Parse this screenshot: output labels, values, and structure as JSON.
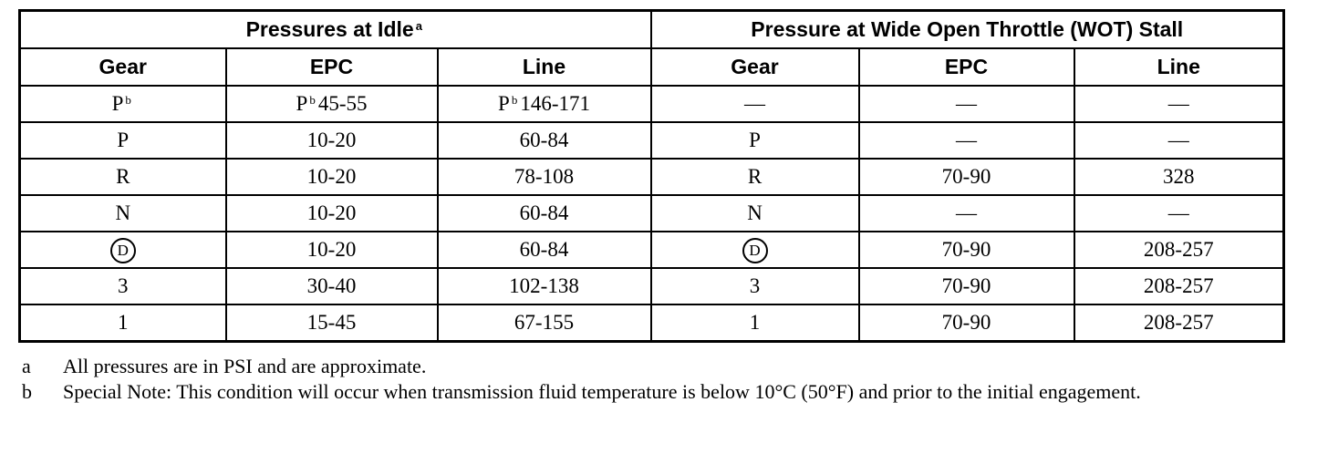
{
  "table": {
    "groups": [
      {
        "text": "Pressures at Idle",
        "sup": "a"
      },
      {
        "text": "Pressure at Wide Open Throttle (WOT) Stall"
      }
    ],
    "columns": [
      "Gear",
      "EPC",
      "Line",
      "Gear",
      "EPC",
      "Line"
    ],
    "rows": [
      [
        {
          "pre": "P",
          "sup": "b"
        },
        {
          "pre": "P",
          "sup": "b",
          "post": "45-55"
        },
        {
          "pre": "P",
          "sup": "b",
          "post": "146-171"
        },
        "—",
        "—",
        "—"
      ],
      [
        "P",
        "10-20",
        "60-84",
        "P",
        "—",
        "—"
      ],
      [
        "R",
        "10-20",
        "78-108",
        "R",
        "70-90",
        "328"
      ],
      [
        "N",
        "10-20",
        "60-84",
        "N",
        "—",
        "—"
      ],
      [
        {
          "circled": "D"
        },
        "10-20",
        "60-84",
        {
          "circled": "D"
        },
        "70-90",
        "208-257"
      ],
      [
        "3",
        "30-40",
        "102-138",
        "3",
        "70-90",
        "208-257"
      ],
      [
        "1",
        "15-45",
        "67-155",
        "1",
        "70-90",
        "208-257"
      ]
    ]
  },
  "notes": [
    {
      "key": "a",
      "text": "All pressures are in PSI and are approximate."
    },
    {
      "key": "b",
      "text": "Special Note: This condition will occur when transmission fluid temperature is below 10°C (50°F) and prior to the initial engagement."
    }
  ]
}
